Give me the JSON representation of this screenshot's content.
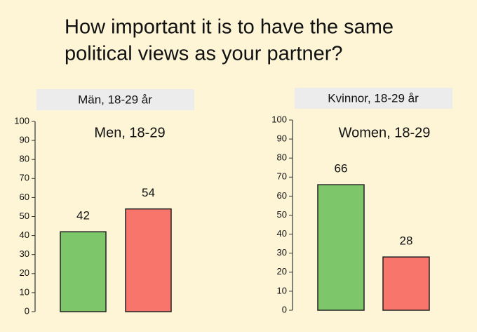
{
  "title": [
    "How important it is to have the same",
    "political views as your partner?"
  ],
  "chart_data": [
    {
      "type": "bar",
      "header": "Män, 18-29 år",
      "annotation": "Men, 18-29",
      "values": [
        42,
        54
      ],
      "colors": [
        "#7dc66a",
        "#f7756a"
      ],
      "ylim": [
        0,
        100
      ],
      "yticks": [
        0,
        10,
        20,
        30,
        40,
        50,
        60,
        70,
        80,
        90,
        100
      ]
    },
    {
      "type": "bar",
      "header": "Kvinnor, 18-29 år",
      "annotation": "Women, 18-29",
      "values": [
        66,
        28
      ],
      "colors": [
        "#7dc66a",
        "#f7756a"
      ],
      "ylim": [
        0,
        100
      ],
      "yticks": [
        0,
        10,
        20,
        30,
        40,
        50,
        60,
        70,
        80,
        90,
        100
      ]
    }
  ]
}
